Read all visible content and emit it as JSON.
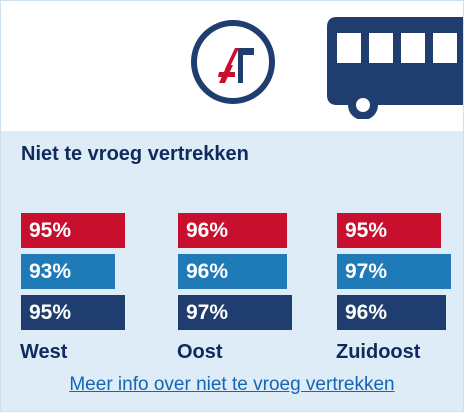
{
  "title": "Niet te vroeg vertrekken",
  "more_link": "Meer info over niet te vroeg vertrekken",
  "colors": {
    "red": "#c8102e",
    "blue": "#1f7ab8",
    "navy": "#1f3d6e",
    "text": "#0f2a5c",
    "panel": "#deecf7",
    "link": "#1565b4"
  },
  "icons": {
    "logo": "transport-operator-logo-icon",
    "vehicle": "bus-icon"
  },
  "chart_data": {
    "type": "bar",
    "orientation": "horizontal",
    "categories": [
      "West",
      "Oost",
      "Zuidoost"
    ],
    "series": [
      {
        "color": "#c8102e",
        "values": [
          95,
          96,
          95
        ],
        "labels": [
          "95%",
          "96%",
          "95%"
        ]
      },
      {
        "color": "#1f7ab8",
        "values": [
          93,
          96,
          97
        ],
        "labels": [
          "93%",
          "96%",
          "97%"
        ]
      },
      {
        "color": "#1f3d6e",
        "values": [
          95,
          97,
          96
        ],
        "labels": [
          "95%",
          "97%",
          "96%"
        ]
      }
    ]
  }
}
